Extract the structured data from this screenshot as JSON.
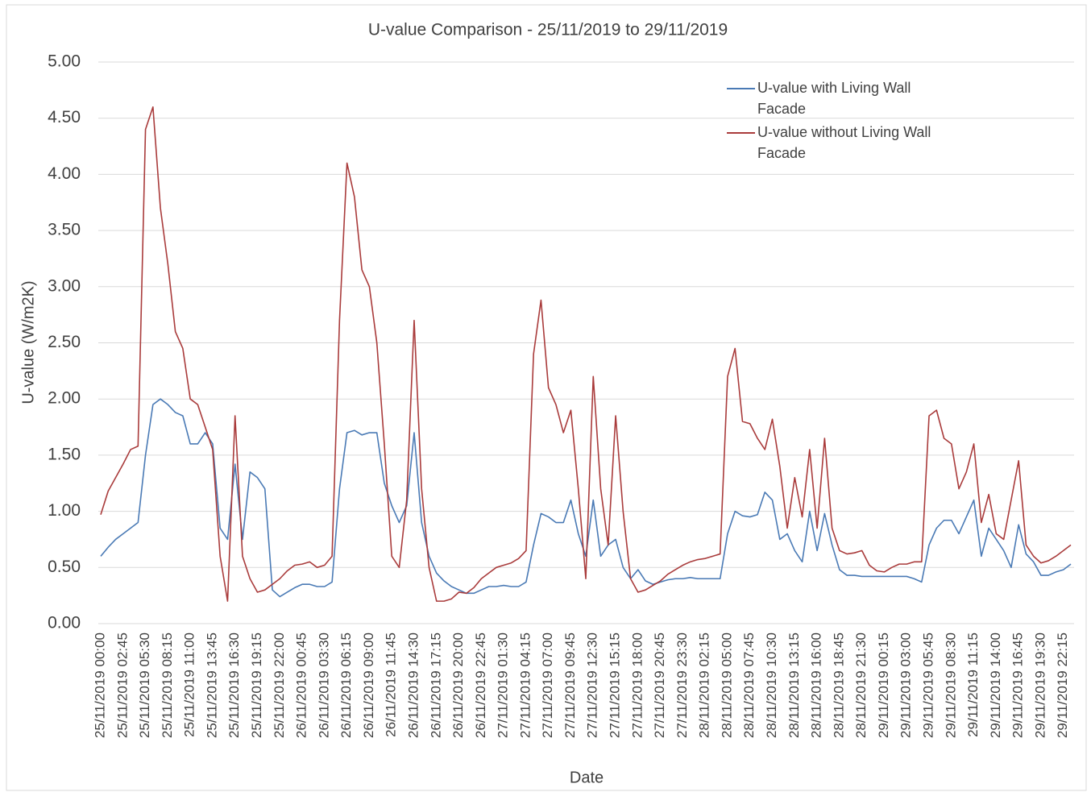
{
  "chart_data": {
    "type": "line",
    "title": "U-value Comparison - 25/11/2019 to 29/11/2019",
    "x_label": "Date",
    "y_label": "U-value (W/m2K)",
    "ylim": [
      0,
      5
    ],
    "yticks": [
      {
        "value": 0,
        "label": "0.00"
      },
      {
        "value": 0.5,
        "label": "0.50"
      },
      {
        "value": 1,
        "label": "1.00"
      },
      {
        "value": 1.5,
        "label": "1.50"
      },
      {
        "value": 2,
        "label": "2.00"
      },
      {
        "value": 2.5,
        "label": "2.50"
      },
      {
        "value": 3,
        "label": "3.00"
      },
      {
        "value": 3.5,
        "label": "3.50"
      },
      {
        "value": 4,
        "label": "4.00"
      },
      {
        "value": 4.5,
        "label": "4.50"
      },
      {
        "value": 5,
        "label": "5.00"
      }
    ],
    "grid": true,
    "legend": "top-right",
    "categories": [
      "25/11/2019 00:00",
      null,
      null,
      "25/11/2019 02:45",
      null,
      null,
      "25/11/2019 05:30",
      null,
      null,
      "25/11/2019 08:15",
      null,
      null,
      "25/11/2019 11:00",
      null,
      null,
      "25/11/2019 13:45",
      null,
      null,
      "25/11/2019 16:30",
      null,
      null,
      "25/11/2019 19:15",
      null,
      null,
      "25/11/2019 22:00",
      null,
      null,
      "26/11/2019 00:45",
      null,
      null,
      "26/11/2019 03:30",
      null,
      null,
      "26/11/2019 06:15",
      null,
      null,
      "26/11/2019 09:00",
      null,
      null,
      "26/11/2019 11:45",
      null,
      null,
      "26/11/2019 14:30",
      null,
      null,
      "26/11/2019 17:15",
      null,
      null,
      "26/11/2019 20:00",
      null,
      null,
      "26/11/2019 22:45",
      null,
      null,
      "27/11/2019 01:30",
      null,
      null,
      "27/11/2019 04:15",
      null,
      null,
      "27/11/2019 07:00",
      null,
      null,
      "27/11/2019 09:45",
      null,
      null,
      "27/11/2019 12:30",
      null,
      null,
      "27/11/2019 15:15",
      null,
      null,
      "27/11/2019 18:00",
      null,
      null,
      "27/11/2019 20:45",
      null,
      null,
      "27/11/2019 23:30",
      null,
      null,
      "28/11/2019 02:15",
      null,
      null,
      "28/11/2019 05:00",
      null,
      null,
      "28/11/2019 07:45",
      null,
      null,
      "28/11/2019 10:30",
      null,
      null,
      "28/11/2019 13:15",
      null,
      null,
      "28/11/2019 16:00",
      null,
      null,
      "28/11/2019 18:45",
      null,
      null,
      "28/11/2019 21:30",
      null,
      null,
      "29/11/2019 00:15",
      null,
      null,
      "29/11/2019 03:00",
      null,
      null,
      "29/11/2019 05:45",
      null,
      null,
      "29/11/2019 08:30",
      null,
      null,
      "29/11/2019 11:15",
      null,
      null,
      "29/11/2019 14:00",
      null,
      null,
      "29/11/2019 16:45",
      null,
      null,
      "29/11/2019 19:30",
      null,
      null,
      "29/11/2019 22:15",
      null
    ],
    "series": [
      {
        "name": "U-value with Living Wall Facade",
        "color": "#4a7ab5",
        "values": [
          0.6,
          0.68,
          0.75,
          0.8,
          0.85,
          0.9,
          1.5,
          1.95,
          2.0,
          1.95,
          1.88,
          1.85,
          1.6,
          1.6,
          1.7,
          1.6,
          0.85,
          0.75,
          1.42,
          0.75,
          1.35,
          1.3,
          1.2,
          0.3,
          0.24,
          0.28,
          0.32,
          0.35,
          0.35,
          0.33,
          0.33,
          0.37,
          1.2,
          1.7,
          1.72,
          1.68,
          1.7,
          1.7,
          1.25,
          1.05,
          0.9,
          1.05,
          1.7,
          0.9,
          0.6,
          0.45,
          0.38,
          0.33,
          0.3,
          0.27,
          0.27,
          0.3,
          0.33,
          0.33,
          0.34,
          0.33,
          0.33,
          0.37,
          0.7,
          0.98,
          0.95,
          0.9,
          0.9,
          1.1,
          0.8,
          0.6,
          1.1,
          0.6,
          0.7,
          0.75,
          0.5,
          0.4,
          0.48,
          0.38,
          0.35,
          0.37,
          0.39,
          0.4,
          0.4,
          0.41,
          0.4,
          0.4,
          0.4,
          0.4,
          0.8,
          1.0,
          0.96,
          0.95,
          0.97,
          1.17,
          1.1,
          0.75,
          0.8,
          0.65,
          0.55,
          1.0,
          0.65,
          0.98,
          0.7,
          0.48,
          0.43,
          0.43,
          0.42,
          0.42,
          0.42,
          0.42,
          0.42,
          0.42,
          0.42,
          0.4,
          0.37,
          0.7,
          0.85,
          0.92,
          0.92,
          0.8,
          0.95,
          1.1,
          0.6,
          0.85,
          0.75,
          0.65,
          0.5,
          0.88,
          0.62,
          0.55,
          0.43,
          0.43,
          0.46,
          0.48,
          0.53
        ]
      },
      {
        "name": "U-value without Living Wall Facade",
        "color": "#a93b3b",
        "values": [
          0.97,
          1.18,
          1.3,
          1.42,
          1.55,
          1.58,
          4.4,
          4.6,
          3.7,
          3.2,
          2.6,
          2.45,
          2.0,
          1.95,
          1.75,
          1.55,
          0.6,
          0.2,
          1.85,
          0.6,
          0.4,
          0.28,
          0.3,
          0.35,
          0.4,
          0.47,
          0.52,
          0.53,
          0.55,
          0.5,
          0.52,
          0.6,
          2.7,
          4.1,
          3.8,
          3.15,
          3.0,
          2.5,
          1.6,
          0.6,
          0.5,
          1.1,
          2.7,
          1.2,
          0.5,
          0.2,
          0.2,
          0.22,
          0.28,
          0.27,
          0.32,
          0.4,
          0.45,
          0.5,
          0.52,
          0.54,
          0.58,
          0.65,
          2.4,
          2.88,
          2.1,
          1.95,
          1.7,
          1.9,
          1.2,
          0.4,
          2.2,
          1.2,
          0.7,
          1.85,
          1.0,
          0.4,
          0.28,
          0.3,
          0.34,
          0.38,
          0.44,
          0.48,
          0.52,
          0.55,
          0.57,
          0.58,
          0.6,
          0.62,
          2.2,
          2.45,
          1.8,
          1.78,
          1.65,
          1.55,
          1.82,
          1.4,
          0.85,
          1.3,
          0.95,
          1.55,
          0.85,
          1.65,
          0.85,
          0.65,
          0.62,
          0.63,
          0.65,
          0.52,
          0.47,
          0.46,
          0.5,
          0.53,
          0.53,
          0.55,
          0.55,
          1.85,
          1.9,
          1.65,
          1.6,
          1.2,
          1.35,
          1.6,
          0.9,
          1.15,
          0.8,
          0.75,
          1.1,
          1.45,
          0.7,
          0.6,
          0.54,
          0.56,
          0.6,
          0.65,
          0.7
        ]
      }
    ]
  }
}
